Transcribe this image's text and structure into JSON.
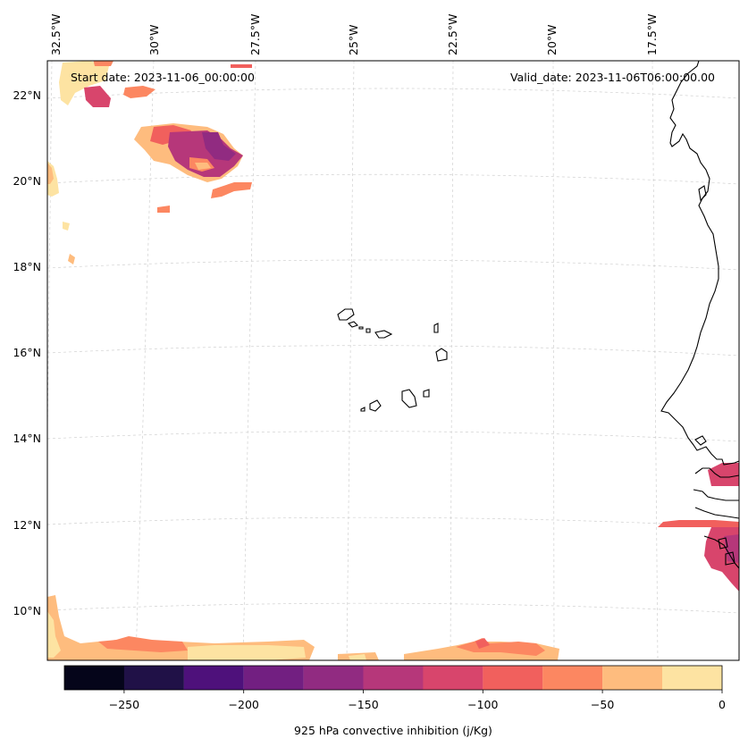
{
  "header": {
    "start_date": "Start date: 2023-11-06_00:00:00",
    "valid_date": "Valid_date: 2023-11-06T06:00:00.00"
  },
  "axes": {
    "lon_ticks": [
      "32.5°W",
      "30°W",
      "27.5°W",
      "25°W",
      "22.5°W",
      "20°W",
      "17.5°W"
    ],
    "lat_ticks": [
      "22°N",
      "20°N",
      "18°N",
      "16°N",
      "14°N",
      "12°N",
      "10°N"
    ]
  },
  "colorbar": {
    "label": "925 hPa convective inhibition (j/Kg)",
    "tick_labels": [
      "−250",
      "−200",
      "−150",
      "−100",
      "−50",
      "0"
    ],
    "colors": [
      "#05051a",
      "#201147",
      "#4e117b",
      "#721f81",
      "#912b81",
      "#b6377a",
      "#d8456c",
      "#f1605d",
      "#fc8761",
      "#febc7e",
      "#fde3a2"
    ]
  }
}
